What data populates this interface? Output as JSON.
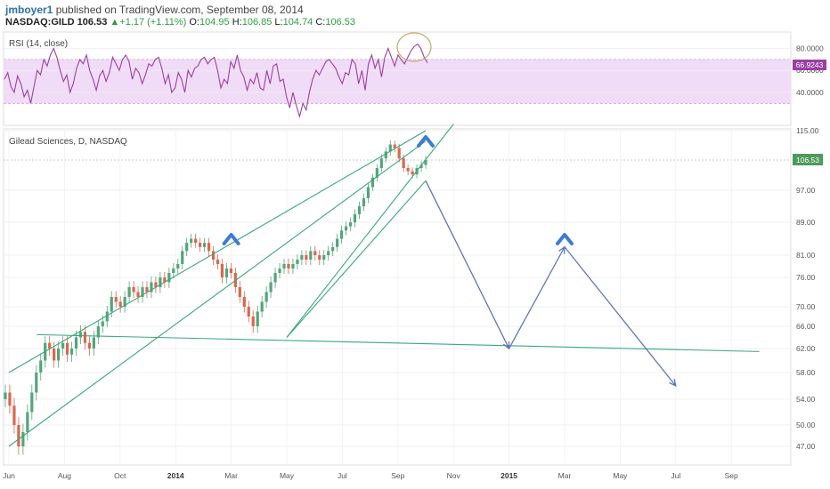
{
  "header": {
    "author": "jmboyer1",
    "published": "published on TradingView.com, September 08, 2014",
    "symbol": "NASDAQ:GILD",
    "last": "106.53",
    "change": "+1.17 (+1.11%)",
    "o_label": "O:",
    "o": "104.95",
    "h_label": "H:",
    "h": "106.85",
    "l_label": "L:",
    "l": "104.74",
    "c_label": "C:",
    "c": "106.53"
  },
  "colors": {
    "rsi_line": "#9b3fa6",
    "rsi_fill": "#f1dcf7",
    "trend": "#3aa87a",
    "projection": "#5b74c0",
    "arrow_marker": "#3d7bd6",
    "up_candle": "#53a57c",
    "down_candle": "#d9674f",
    "last_price_bg": "#4e9a5b"
  },
  "chart_data": [
    {
      "type": "line",
      "title": "RSI (14, close)",
      "ylim": [
        10,
        95
      ],
      "y_ticks": [
        "80.0000",
        "60.0000",
        "40.0000"
      ],
      "band": [
        30,
        70
      ],
      "last_value_label": "66.9243",
      "series": [
        {
          "name": "RSI (14, close)",
          "values": [
            52,
            58,
            45,
            40,
            55,
            48,
            36,
            42,
            30,
            45,
            60,
            56,
            70,
            64,
            74,
            80,
            72,
            60,
            50,
            56,
            40,
            48,
            62,
            70,
            66,
            74,
            60,
            52,
            42,
            55,
            60,
            50,
            58,
            72,
            66,
            60,
            70,
            74,
            68,
            52,
            62,
            58,
            48,
            56,
            66,
            64,
            70,
            72,
            62,
            48,
            56,
            40,
            44,
            58,
            52,
            40,
            60,
            54,
            62,
            64,
            70,
            72,
            66,
            70,
            72,
            60,
            44,
            52,
            48,
            68,
            62,
            74,
            60,
            54,
            42,
            52,
            48,
            58,
            44,
            42,
            60,
            48,
            64,
            66,
            50,
            52,
            36,
            26,
            40,
            28,
            18,
            30,
            24,
            40,
            52,
            60,
            56,
            62,
            68,
            70,
            66,
            62,
            54,
            48,
            58,
            56,
            70,
            66,
            48,
            60,
            42,
            66,
            74,
            62,
            70,
            54,
            72,
            80,
            72,
            64,
            74,
            70,
            66,
            72,
            78,
            82,
            84,
            80,
            72,
            67
          ]
        }
      ]
    },
    {
      "type": "candlestick",
      "title": "Gilead Sciences, D, NASDAQ",
      "x_tick_labels": [
        "Jun",
        "Aug",
        "Oct",
        "2014",
        "Mar",
        "May",
        "Jul",
        "Sep",
        "Nov",
        "2015",
        "Mar",
        "May",
        "Jul",
        "Sep"
      ],
      "y_tick_labels": [
        "115.00",
        "106.53",
        "97.00",
        "89.00",
        "81.00",
        "76.00",
        "70.00",
        "66.00",
        "62.00",
        "58.00",
        "54.00",
        "50.00",
        "47.00"
      ],
      "ylim": [
        45,
        115
      ],
      "last_price": 106.53,
      "series": [
        {
          "name": "GILD close",
          "values": [
            55,
            53,
            50,
            47,
            49,
            52,
            55,
            58,
            60,
            63,
            62,
            60,
            62,
            63,
            61,
            62,
            64,
            65,
            63,
            62,
            64,
            66,
            67,
            69,
            72,
            71,
            70,
            72,
            74,
            73,
            72,
            74,
            73,
            75,
            74,
            76,
            75,
            77,
            78,
            79,
            82,
            84,
            85,
            84,
            83,
            84,
            82,
            80,
            79,
            76,
            78,
            77,
            74,
            72,
            70,
            68,
            66,
            69,
            71,
            73,
            75,
            77,
            78,
            79,
            78,
            79,
            80,
            81,
            80,
            82,
            81,
            80,
            81,
            82,
            83,
            85,
            87,
            88,
            89,
            91,
            93,
            95,
            98,
            101,
            104,
            107,
            109,
            111,
            110,
            107,
            104,
            103,
            102,
            104,
            105,
            106.53
          ]
        }
      ],
      "annotations": {
        "trendlines": [
          {
            "name": "upper rising line",
            "from": [
              "Jun 2013",
              58
            ],
            "to": [
              "Sep 2014",
              115
            ]
          },
          {
            "name": "lower rising line",
            "from": [
              "Jun 2013",
              47
            ],
            "to": [
              "Sep 2014",
              112
            ]
          },
          {
            "name": "channel support",
            "from": [
              "Apr 2014",
              64
            ],
            "to": [
              "Sep 2014",
              100
            ]
          },
          {
            "name": "channel resistance",
            "from": [
              "Apr 2014",
              64
            ],
            "to": [
              "Oct 2014",
              117
            ]
          },
          {
            "name": "horizontal support",
            "from": [
              "Jul 2013",
              64.5
            ],
            "to": [
              "Sep 2015",
              61.5
            ]
          }
        ],
        "projection_path": [
          {
            "x": "Sep 2014",
            "y": 100
          },
          {
            "x": "Dec 2014",
            "y": 62
          },
          {
            "x": "Feb 2015",
            "y": 83
          },
          {
            "x": "Jun 2015",
            "y": 56
          }
        ],
        "peak_markers": [
          "Feb 2014",
          "Sep 2014",
          "Feb 2015"
        ],
        "rsi_circle": "Aug 2014"
      }
    }
  ]
}
